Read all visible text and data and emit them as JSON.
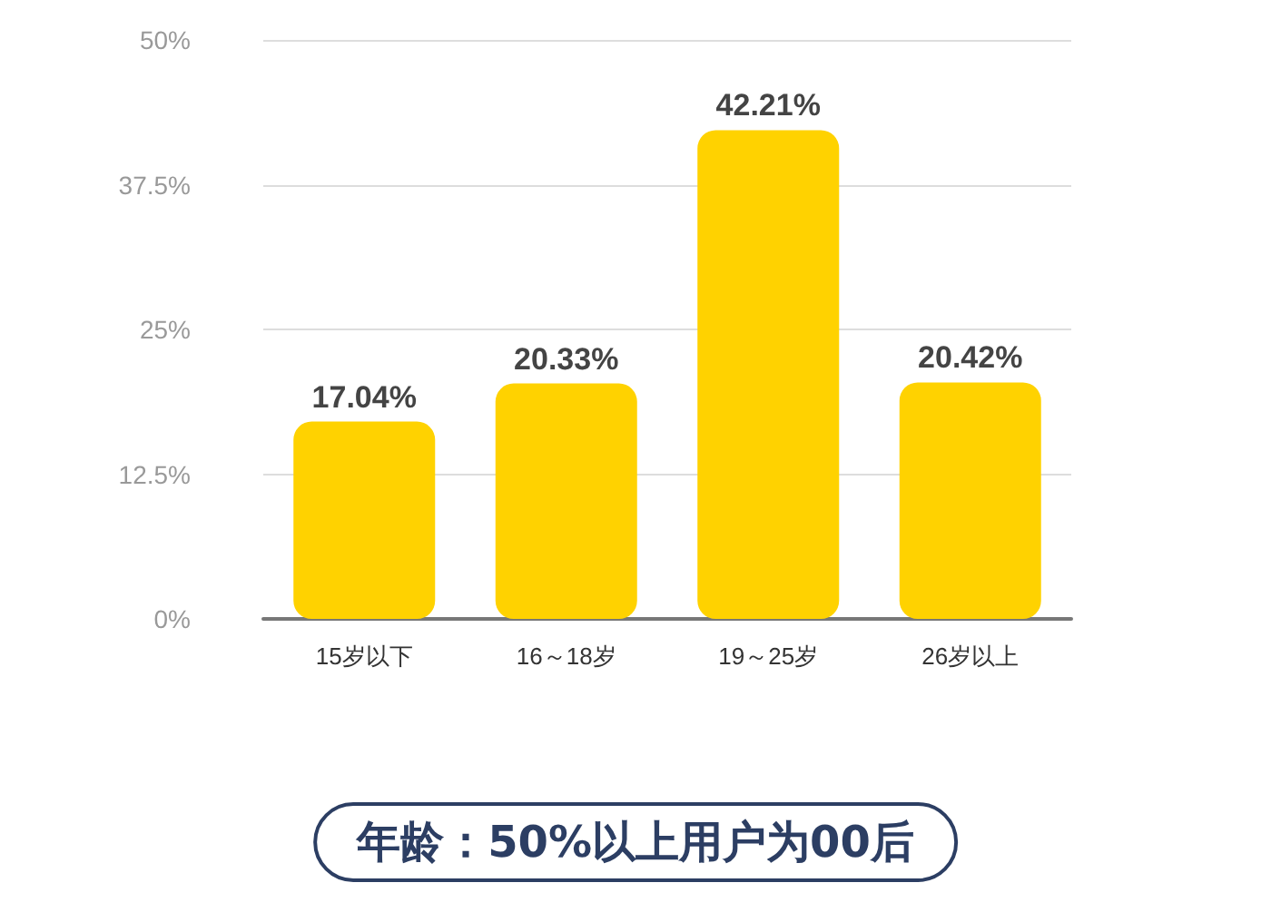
{
  "chart_data": {
    "type": "bar",
    "title": "年龄：50%以上用户为00后",
    "categories": [
      "15岁以下",
      "16～18岁",
      "19～25岁",
      "26岁以上"
    ],
    "values": [
      17.04,
      20.33,
      42.21,
      20.42
    ],
    "color": "#ffd200",
    "value_labels": [
      "17.04%",
      "20.33%",
      "42.21%",
      "20.42%"
    ],
    "ylim": [
      0,
      50
    ],
    "yticks": [
      {
        "value": 0,
        "label": "0%"
      },
      {
        "value": 12.5,
        "label": "12.5%"
      },
      {
        "value": 25,
        "label": "25%"
      },
      {
        "value": 37.5,
        "label": "37.5%"
      },
      {
        "value": 50,
        "label": "50%"
      }
    ],
    "grid": "y"
  }
}
